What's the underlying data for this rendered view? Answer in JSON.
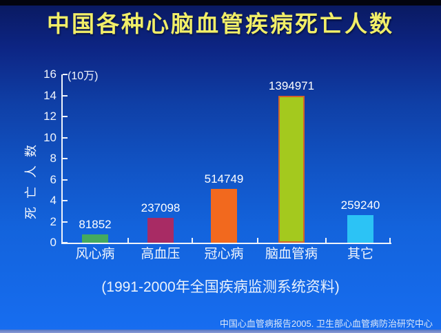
{
  "title": {
    "text": "中国各种心脑血管疾病死亡人数",
    "color": "#f1ee68"
  },
  "subtitle": {
    "text": "(1991-2000年全国疾病监测系统资料)"
  },
  "footer": {
    "text": "中国心血管病报告2005. 卫生部心血管病防治研究中心"
  },
  "chart_data": {
    "type": "bar",
    "title": "中国各种心脑血管疾病死亡人数",
    "subtitle": "(1991-2000年全国疾病监测系统资料)",
    "ylabel": "死亡人数",
    "y_unit_label": "(10万)",
    "xlabel": "",
    "ylim": [
      0,
      16
    ],
    "yticks": [
      0,
      2,
      4,
      6,
      8,
      10,
      12,
      14,
      16
    ],
    "grid": false,
    "legend": null,
    "unit_divisor": 100000,
    "categories": [
      "风心病",
      "高血压",
      "冠心病",
      "脑血管病",
      "其它"
    ],
    "values": [
      81852,
      237098,
      514749,
      1394971,
      259240
    ],
    "value_labels": [
      "81852",
      "237098",
      "514749",
      "1394971",
      "259240"
    ],
    "bar_colors": [
      "#44aa5e",
      "#a82b64",
      "#f2691e",
      "#a4c91e",
      "#2cc3f5"
    ],
    "bar_border_colors": [
      "",
      "",
      "",
      "#d4622a",
      ""
    ],
    "axis_color": "#f0f4fa",
    "text_color": "#f2f6fc"
  }
}
